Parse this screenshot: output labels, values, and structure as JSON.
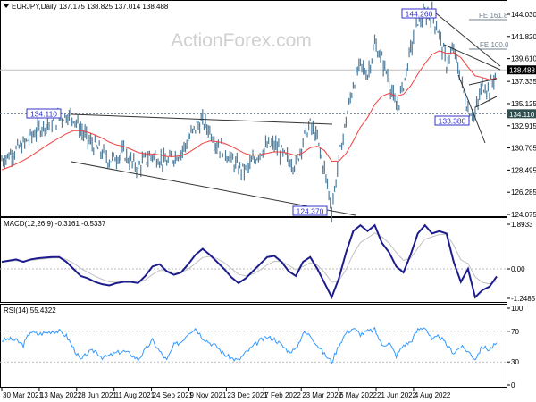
{
  "header": {
    "symbol_label": "EURJPY,Daily",
    "ohlc": "137.175 138.825 137.014 138.488"
  },
  "watermark": "ActionForex.com",
  "colors": {
    "price_bars": "#4f7d9c",
    "moving_average": "#f04040",
    "macd_line": "#1c1c8c",
    "macd_signal": "#c0c0c0",
    "rsi_line": "#3399ff",
    "annotation_box": "#3333cc",
    "axis_current_price_bg": "#000000",
    "axis_support_bg": "#2f4f4f"
  },
  "chart_data": [
    {
      "type": "line",
      "panel": "price",
      "ylim": [
        124.075,
        144.03
      ],
      "y_ticks": [
        "144.030",
        "141.820",
        "139.610",
        "137.335",
        "135.125",
        "132.915",
        "130.705",
        "128.495",
        "126.285",
        "124.075"
      ],
      "y_tick_values": [
        144.03,
        141.82,
        139.61,
        137.335,
        135.125,
        132.915,
        130.705,
        128.495,
        126.285,
        124.075
      ],
      "current_price": "138.488",
      "support_level": "134.110",
      "annotations": [
        "134.110",
        "144.260",
        "133.380",
        "124.370"
      ],
      "fibonacci_labels": [
        "FE 161.8",
        "FE 100.0"
      ],
      "values": [
        129.5,
        130,
        130.5,
        131,
        131.8,
        132.5,
        133,
        133.3,
        133.6,
        134,
        133.8,
        132.5,
        131.5,
        130.8,
        130.2,
        129.5,
        129.8,
        130.2,
        129.3,
        128.8,
        129.5,
        130,
        129.6,
        129.2,
        129.8,
        130.3,
        131.5,
        132.8,
        133.3,
        132.5,
        131,
        130.5,
        129.5,
        128.7,
        128.5,
        129.3,
        130.3,
        130.8,
        131,
        130.2,
        129.5,
        129,
        131.5,
        133,
        131.5,
        128.5,
        124.6,
        129.5,
        133.5,
        137,
        139,
        138,
        141,
        139.5,
        137.5,
        134.5,
        137,
        140.5,
        143.5,
        143.8,
        144.1,
        142,
        139,
        140.5,
        137.5,
        134.5,
        134,
        137,
        136.5,
        138.5
      ]
    },
    {
      "type": "line",
      "panel": "macd",
      "title": "MACD(12,26,9) -0.3161 -0.5337",
      "y_ticks": [
        "1.8933",
        "0.00",
        "-1.2485"
      ],
      "ylim": [
        -1.2485,
        1.8933
      ],
      "values": [
        0.3,
        0.35,
        0.4,
        0.3,
        0.4,
        0.45,
        0.48,
        0.5,
        0.5,
        0.3,
        0.0,
        -0.3,
        -0.4,
        -0.55,
        -0.65,
        -0.7,
        -0.6,
        -0.55,
        -0.55,
        -0.6,
        -0.3,
        0.1,
        0.2,
        -0.1,
        -0.25,
        -0.15,
        0.2,
        0.6,
        0.85,
        0.6,
        0.3,
        0.0,
        -0.35,
        -0.6,
        -0.4,
        -0.1,
        0.2,
        0.5,
        0.55,
        0.3,
        -0.1,
        -0.3,
        0.3,
        0.5,
        0.0,
        -0.6,
        -1.2,
        -0.4,
        0.7,
        1.6,
        1.85,
        1.6,
        1.85,
        1.1,
        0.7,
        0.1,
        -0.15,
        0.6,
        1.5,
        1.85,
        1.5,
        1.6,
        1.5,
        0.3,
        -0.55,
        0.0,
        -1.2,
        -0.9,
        -0.75,
        -0.32
      ]
    },
    {
      "type": "line",
      "panel": "rsi",
      "title": "RSI(14) 55.4322",
      "y_ticks": [
        "100",
        "70",
        "30",
        "0"
      ],
      "ylim": [
        0,
        100
      ],
      "levels": [
        70,
        30
      ],
      "values": [
        58,
        60,
        58,
        52,
        70,
        66,
        68,
        70,
        70,
        64,
        48,
        32,
        42,
        45,
        36,
        38,
        42,
        44,
        40,
        33,
        46,
        58,
        44,
        32,
        52,
        56,
        68,
        74,
        62,
        55,
        50,
        40,
        35,
        32,
        42,
        50,
        58,
        62,
        60,
        52,
        44,
        46,
        68,
        65,
        52,
        40,
        30,
        52,
        68,
        74,
        66,
        70,
        72,
        52,
        55,
        38,
        52,
        56,
        72,
        76,
        58,
        64,
        52,
        42,
        50,
        44,
        34,
        50,
        46,
        55
      ]
    }
  ],
  "x_axis": {
    "tick_labels": [
      "30 Mar 2021",
      "13 May 2021",
      "28 Jun 2021",
      "11 Aug 2021",
      "24 Sep 2021",
      "9 Nov 2021",
      "23 Dec 2021",
      "7 Feb 2022",
      "23 Mar 2022",
      "6 May 2022",
      "21 Jun 2022",
      "4 Aug 2022"
    ]
  }
}
